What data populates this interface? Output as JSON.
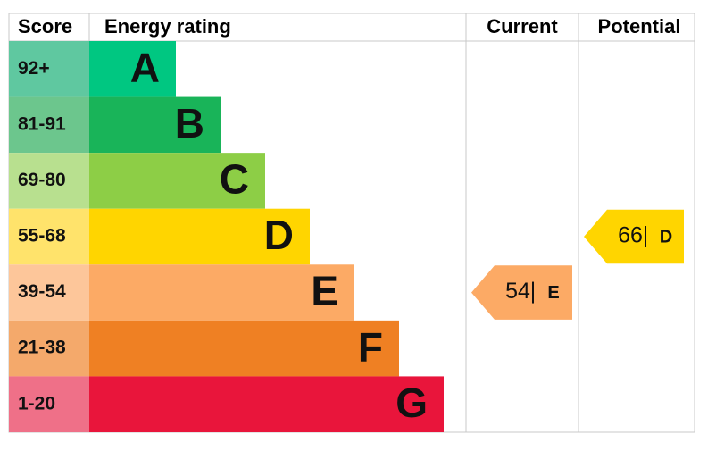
{
  "headers": {
    "score": "Score",
    "rating": "Energy rating",
    "current": "Current",
    "potential": "Potential"
  },
  "bands": [
    {
      "score": "92+",
      "letter": "A",
      "color": "#00c781",
      "score_color": "#5fc8a0"
    },
    {
      "score": "81-91",
      "letter": "B",
      "color": "#19b459",
      "score_color": "#6cc68d"
    },
    {
      "score": "69-80",
      "letter": "C",
      "color": "#8dce46",
      "score_color": "#b8e08f"
    },
    {
      "score": "55-68",
      "letter": "D",
      "color": "#ffd500",
      "score_color": "#ffe36b"
    },
    {
      "score": "39-54",
      "letter": "E",
      "color": "#fcaa65",
      "score_color": "#fdc69a"
    },
    {
      "score": "21-38",
      "letter": "F",
      "color": "#ef8023",
      "score_color": "#f4a96b"
    },
    {
      "score": "1-20",
      "letter": "G",
      "color": "#e9153b",
      "score_color": "#ef7088"
    }
  ],
  "current": {
    "value": 54,
    "rating": "E"
  },
  "potential": {
    "value": 66,
    "rating": "D"
  }
}
